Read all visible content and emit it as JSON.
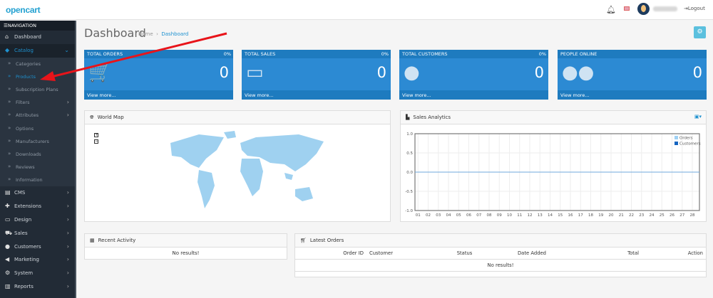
{
  "header": {
    "logo": "opencart",
    "logo_cart": "⠐⠒",
    "logout": "Logout"
  },
  "sidebar": {
    "heading": "NAVIGATION",
    "items": [
      {
        "label": "Dashboard",
        "icon": "⌂",
        "type": "top"
      },
      {
        "label": "Catalog",
        "icon": "◆",
        "type": "active",
        "chevron": "⌄"
      },
      {
        "label": "Categories",
        "icon": "»",
        "type": "sub"
      },
      {
        "label": "Products",
        "icon": "»",
        "type": "sub cur"
      },
      {
        "label": "Subscription Plans",
        "icon": "»",
        "type": "sub"
      },
      {
        "label": "Filters",
        "icon": "»",
        "type": "sub",
        "chevron": "›"
      },
      {
        "label": "Attributes",
        "icon": "»",
        "type": "sub",
        "chevron": "›"
      },
      {
        "label": "Options",
        "icon": "»",
        "type": "sub"
      },
      {
        "label": "Manufacturers",
        "icon": "»",
        "type": "sub"
      },
      {
        "label": "Downloads",
        "icon": "»",
        "type": "sub"
      },
      {
        "label": "Reviews",
        "icon": "»",
        "type": "sub"
      },
      {
        "label": "Information",
        "icon": "»",
        "type": "sub"
      },
      {
        "label": "CMS",
        "icon": "▤",
        "type": "top",
        "chevron": "›"
      },
      {
        "label": "Extensions",
        "icon": "✚",
        "type": "top",
        "chevron": "›"
      },
      {
        "label": "Design",
        "icon": "▭",
        "type": "top",
        "chevron": "›"
      },
      {
        "label": "Sales",
        "icon": "⛟",
        "type": "top",
        "chevron": "›"
      },
      {
        "label": "Customers",
        "icon": "●",
        "type": "top",
        "chevron": "›"
      },
      {
        "label": "Marketing",
        "icon": "◀",
        "type": "top",
        "chevron": "›"
      },
      {
        "label": "System",
        "icon": "⚙",
        "type": "top",
        "chevron": "›"
      },
      {
        "label": "Reports",
        "icon": "▥",
        "type": "top",
        "chevron": "›"
      }
    ]
  },
  "page": {
    "title": "Dashboard",
    "breadcrumb": [
      "Home",
      "Dashboard"
    ]
  },
  "tiles": [
    {
      "title": "TOTAL ORDERS",
      "pct": "0%",
      "value": "0",
      "link": "View more...",
      "icon": "🛒"
    },
    {
      "title": "TOTAL SALES",
      "pct": "0%",
      "value": "0",
      "link": "View more...",
      "icon": "▭"
    },
    {
      "title": "TOTAL CUSTOMERS",
      "pct": "0%",
      "value": "0",
      "link": "View more...",
      "icon": "●"
    },
    {
      "title": "PEOPLE ONLINE",
      "pct": "",
      "value": "0",
      "link": "View more...",
      "icon": "●●"
    }
  ],
  "world_map": {
    "title": "World Map",
    "zoom_in": "+",
    "zoom_out": "−"
  },
  "sales_analytics": {
    "title": "Sales Analytics"
  },
  "chart_data": {
    "type": "line",
    "x": [
      "01",
      "02",
      "03",
      "04",
      "05",
      "06",
      "07",
      "08",
      "09",
      "10",
      "11",
      "12",
      "13",
      "14",
      "15",
      "16",
      "17",
      "18",
      "19",
      "20",
      "21",
      "22",
      "23",
      "24",
      "25",
      "26",
      "27",
      "28"
    ],
    "yticks": [
      "1.0",
      "0.5",
      "0.0",
      "-0.5",
      "-1.0"
    ],
    "ylim": [
      -1,
      1
    ],
    "grid": true,
    "legend": "top-right",
    "series": [
      {
        "name": "Orders",
        "color": "#9fd1f5",
        "values": [
          0,
          0,
          0,
          0,
          0,
          0,
          0,
          0,
          0,
          0,
          0,
          0,
          0,
          0,
          0,
          0,
          0,
          0,
          0,
          0,
          0,
          0,
          0,
          0,
          0,
          0,
          0,
          0
        ]
      },
      {
        "name": "Customers",
        "color": "#1565c0",
        "values": [
          0,
          0,
          0,
          0,
          0,
          0,
          0,
          0,
          0,
          0,
          0,
          0,
          0,
          0,
          0,
          0,
          0,
          0,
          0,
          0,
          0,
          0,
          0,
          0,
          0,
          0,
          0,
          0
        ]
      }
    ]
  },
  "recent_activity": {
    "title": "Recent Activity",
    "empty": "No results!"
  },
  "latest_orders": {
    "title": "Latest Orders",
    "columns": [
      "Order ID",
      "Customer",
      "Status",
      "Date Added",
      "Total",
      "Action"
    ],
    "empty": "No results!"
  }
}
